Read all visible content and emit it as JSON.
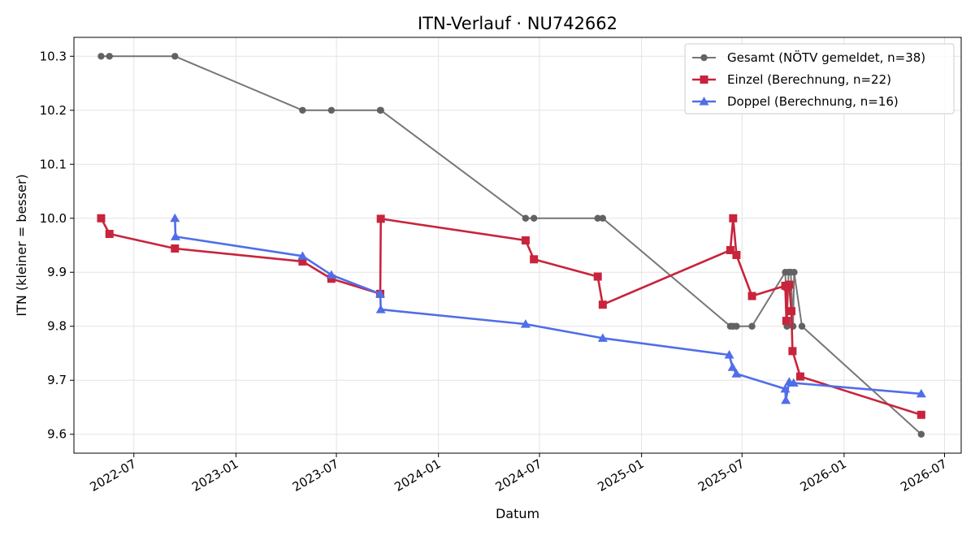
{
  "chart_data": {
    "type": "line",
    "title": "ITN-Verlauf · NU742662",
    "xlabel": "Datum",
    "ylabel": "ITN  (kleiner = besser)",
    "x_axis": "date",
    "xlim": [
      "2022-03-15",
      "2026-07-31"
    ],
    "ylim": [
      9.565,
      10.335
    ],
    "x_ticks": [
      {
        "value": "2022-07-01",
        "label": "2022-07"
      },
      {
        "value": "2023-01-01",
        "label": "2023-01"
      },
      {
        "value": "2023-07-01",
        "label": "2023-07"
      },
      {
        "value": "2024-01-01",
        "label": "2024-01"
      },
      {
        "value": "2024-07-01",
        "label": "2024-07"
      },
      {
        "value": "2025-01-01",
        "label": "2025-01"
      },
      {
        "value": "2025-07-01",
        "label": "2025-07"
      },
      {
        "value": "2026-01-01",
        "label": "2026-01"
      },
      {
        "value": "2026-07-01",
        "label": "2026-07"
      }
    ],
    "y_ticks": [
      {
        "value": 9.6,
        "label": "9.6"
      },
      {
        "value": 9.7,
        "label": "9.7"
      },
      {
        "value": 9.8,
        "label": "9.8"
      },
      {
        "value": 9.9,
        "label": "9.9"
      },
      {
        "value": 10.0,
        "label": "10.0"
      },
      {
        "value": 10.1,
        "label": "10.1"
      },
      {
        "value": 10.2,
        "label": "10.2"
      },
      {
        "value": 10.3,
        "label": "10.3"
      }
    ],
    "grid": true,
    "legend_position": "top-right",
    "series": [
      {
        "name": "Gesamt (NÖTV gemeldet, n=38)",
        "color": "#555555",
        "marker": "circle",
        "points": [
          {
            "x": "2022-05-03",
            "y": 10.3
          },
          {
            "x": "2022-05-18",
            "y": 10.3
          },
          {
            "x": "2022-09-13",
            "y": 10.3
          },
          {
            "x": "2023-05-01",
            "y": 10.2
          },
          {
            "x": "2023-06-22",
            "y": 10.2
          },
          {
            "x": "2023-09-18",
            "y": 10.2
          },
          {
            "x": "2023-09-19",
            "y": 10.2
          },
          {
            "x": "2024-06-06",
            "y": 10.0
          },
          {
            "x": "2024-06-21",
            "y": 10.0
          },
          {
            "x": "2024-10-14",
            "y": 10.0
          },
          {
            "x": "2024-10-23",
            "y": 10.0
          },
          {
            "x": "2025-06-10",
            "y": 9.8
          },
          {
            "x": "2025-06-15",
            "y": 9.8
          },
          {
            "x": "2025-06-21",
            "y": 9.8
          },
          {
            "x": "2025-07-19",
            "y": 9.8
          },
          {
            "x": "2025-09-17",
            "y": 9.9
          },
          {
            "x": "2025-09-20",
            "y": 9.8
          },
          {
            "x": "2025-09-23",
            "y": 9.9
          },
          {
            "x": "2025-09-27",
            "y": 9.9
          },
          {
            "x": "2025-10-01",
            "y": 9.8
          },
          {
            "x": "2025-10-03",
            "y": 9.9
          },
          {
            "x": "2025-10-17",
            "y": 9.8
          },
          {
            "x": "2026-05-20",
            "y": 9.6
          }
        ]
      },
      {
        "name": "Einzel (Berechnung, n=22)",
        "color": "#C8243C",
        "marker": "square",
        "points": [
          {
            "x": "2022-05-03",
            "y": 10.0
          },
          {
            "x": "2022-05-18",
            "y": 9.971
          },
          {
            "x": "2022-09-13",
            "y": 9.944
          },
          {
            "x": "2023-05-01",
            "y": 9.92
          },
          {
            "x": "2023-06-22",
            "y": 9.888
          },
          {
            "x": "2023-09-18",
            "y": 9.86
          },
          {
            "x": "2023-09-19",
            "y": 9.999
          },
          {
            "x": "2024-06-06",
            "y": 9.959
          },
          {
            "x": "2024-06-21",
            "y": 9.924
          },
          {
            "x": "2024-10-14",
            "y": 9.892
          },
          {
            "x": "2024-10-23",
            "y": 9.84
          },
          {
            "x": "2025-06-10",
            "y": 9.941
          },
          {
            "x": "2025-06-15",
            "y": 10.0
          },
          {
            "x": "2025-06-21",
            "y": 9.932
          },
          {
            "x": "2025-07-19",
            "y": 9.856
          },
          {
            "x": "2025-09-17",
            "y": 9.875
          },
          {
            "x": "2025-09-19",
            "y": 9.81
          },
          {
            "x": "2025-09-21",
            "y": 9.873
          },
          {
            "x": "2025-09-24",
            "y": 9.877
          },
          {
            "x": "2025-09-28",
            "y": 9.828
          },
          {
            "x": "2025-09-30",
            "y": 9.754
          },
          {
            "x": "2025-10-14",
            "y": 9.707
          },
          {
            "x": "2026-05-20",
            "y": 9.636
          }
        ]
      },
      {
        "name": "Doppel (Berechnung, n=16)",
        "color": "#4F6EE8",
        "marker": "triangle",
        "points": [
          {
            "x": "2022-09-13",
            "y": 10.0
          },
          {
            "x": "2022-09-14",
            "y": 9.966
          },
          {
            "x": "2023-05-01",
            "y": 9.93
          },
          {
            "x": "2023-06-22",
            "y": 9.895
          },
          {
            "x": "2023-09-18",
            "y": 9.86
          },
          {
            "x": "2023-09-19",
            "y": 9.831
          },
          {
            "x": "2024-06-06",
            "y": 9.804
          },
          {
            "x": "2024-10-23",
            "y": 9.778
          },
          {
            "x": "2025-06-08",
            "y": 9.747
          },
          {
            "x": "2025-06-14",
            "y": 9.724
          },
          {
            "x": "2025-06-21",
            "y": 9.712
          },
          {
            "x": "2025-09-17",
            "y": 9.684
          },
          {
            "x": "2025-09-18",
            "y": 9.663
          },
          {
            "x": "2025-09-24",
            "y": 9.697
          },
          {
            "x": "2025-10-02",
            "y": 9.695
          },
          {
            "x": "2026-05-20",
            "y": 9.675
          }
        ]
      }
    ]
  }
}
